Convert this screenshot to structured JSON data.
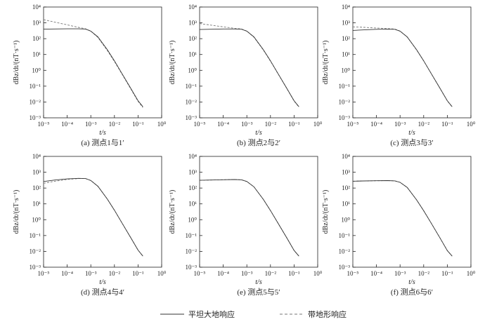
{
  "chart_data": [
    {
      "id": "a",
      "type": "line",
      "caption": "(a) 测点1与1′",
      "xlabel": "t/s",
      "ylabel": "dBz/dt/(nT·s⁻¹)",
      "xscale": "log",
      "yscale": "log",
      "xlim": [
        1e-05,
        1
      ],
      "ylim": [
        0.001,
        10000.0
      ],
      "xticks": [
        "10⁻⁵",
        "10⁻⁴",
        "10⁻³",
        "10⁻²",
        "10⁻¹",
        "10⁰"
      ],
      "yticks": [
        "10⁻³",
        "10⁻²",
        "10⁻¹",
        "10⁰",
        "10¹",
        "10²",
        "10³",
        "10⁴"
      ],
      "series": [
        {
          "name": "平坦大地响应",
          "style": "solid",
          "x": [
            1e-05,
            3e-05,
            0.0001,
            0.0003,
            0.0006,
            0.001,
            0.002,
            0.005,
            0.01,
            0.02,
            0.05,
            0.1,
            0.16
          ],
          "y": [
            400,
            410,
            420,
            420,
            405,
            300,
            130,
            20,
            4,
            0.7,
            0.07,
            0.012,
            0.005
          ]
        },
        {
          "name": "带地形响应",
          "style": "dashed",
          "x": [
            1e-05,
            3e-05,
            0.0001,
            0.0003,
            0.0006,
            0.001,
            0.002,
            0.005,
            0.01,
            0.02,
            0.05,
            0.1,
            0.16
          ],
          "y": [
            1600,
            1100,
            750,
            520,
            420,
            300,
            120,
            18,
            3.6,
            0.65,
            0.065,
            0.011,
            0.0045
          ]
        }
      ]
    },
    {
      "id": "b",
      "type": "line",
      "caption": "(b) 测点2与2′",
      "xlabel": "t/s",
      "ylabel": "dBz/dt/(nT·s⁻¹)",
      "xscale": "log",
      "yscale": "log",
      "xlim": [
        1e-05,
        1
      ],
      "ylim": [
        0.001,
        10000.0
      ],
      "xticks": [
        "10⁻⁵",
        "10⁻⁴",
        "10⁻³",
        "10⁻²",
        "10⁻¹",
        "10⁰"
      ],
      "yticks": [
        "10⁻³",
        "10⁻²",
        "10⁻¹",
        "10⁰",
        "10¹",
        "10²",
        "10³",
        "10⁴"
      ],
      "series": [
        {
          "name": "平坦大地响应",
          "style": "solid",
          "x": [
            1e-05,
            3e-05,
            0.0001,
            0.0003,
            0.0006,
            0.001,
            0.002,
            0.005,
            0.01,
            0.02,
            0.05,
            0.1,
            0.16
          ],
          "y": [
            380,
            395,
            410,
            410,
            395,
            300,
            130,
            20,
            4,
            0.7,
            0.07,
            0.012,
            0.005
          ]
        },
        {
          "name": "带地形响应",
          "style": "dashed",
          "x": [
            1e-05,
            3e-05,
            0.0001,
            0.0003,
            0.0006,
            0.001,
            0.002,
            0.005,
            0.01,
            0.02,
            0.05,
            0.1,
            0.16
          ],
          "y": [
            900,
            720,
            560,
            450,
            410,
            300,
            125,
            19,
            3.8,
            0.68,
            0.068,
            0.0115,
            0.0048
          ]
        }
      ]
    },
    {
      "id": "c",
      "type": "line",
      "caption": "(c) 测点3与3′",
      "xlabel": "t/s",
      "ylabel": "dBz/dt/(nT·s⁻¹)",
      "xscale": "log",
      "yscale": "log",
      "xlim": [
        1e-05,
        1
      ],
      "ylim": [
        0.001,
        10000.0
      ],
      "xticks": [
        "10⁻⁵",
        "10⁻⁴",
        "10⁻³",
        "10⁻²",
        "10⁻¹",
        "10⁰"
      ],
      "yticks": [
        "10⁻³",
        "10⁻²",
        "10⁻¹",
        "10⁰",
        "10¹",
        "10²",
        "10³",
        "10⁴"
      ],
      "series": [
        {
          "name": "平坦大地响应",
          "style": "solid",
          "x": [
            1e-05,
            3e-05,
            0.0001,
            0.0003,
            0.0006,
            0.001,
            0.002,
            0.005,
            0.01,
            0.02,
            0.05,
            0.1,
            0.16
          ],
          "y": [
            330,
            360,
            390,
            400,
            390,
            300,
            130,
            20,
            4,
            0.7,
            0.07,
            0.012,
            0.005
          ]
        },
        {
          "name": "带地形响应",
          "style": "dashed",
          "x": [
            1e-05,
            3e-05,
            0.0001,
            0.0003,
            0.0006,
            0.001,
            0.002,
            0.005,
            0.01,
            0.02,
            0.05,
            0.1,
            0.16
          ],
          "y": [
            560,
            520,
            470,
            430,
            405,
            300,
            128,
            19.5,
            3.9,
            0.69,
            0.069,
            0.0118,
            0.0049
          ]
        }
      ]
    },
    {
      "id": "d",
      "type": "line",
      "caption": "(d) 测点4与4′",
      "xlabel": "t/s",
      "ylabel": "dBz/dt/(nT·s⁻¹)",
      "xscale": "log",
      "yscale": "log",
      "xlim": [
        1e-05,
        1
      ],
      "ylim": [
        0.001,
        10000.0
      ],
      "xticks": [
        "10⁻⁵",
        "10⁻⁴",
        "10⁻³",
        "10⁻²",
        "10⁻¹",
        "10⁰"
      ],
      "yticks": [
        "10⁻³",
        "10⁻²",
        "10⁻¹",
        "10⁰",
        "10¹",
        "10²",
        "10³",
        "10⁴"
      ],
      "series": [
        {
          "name": "平坦大地响应",
          "style": "solid",
          "x": [
            1e-05,
            3e-05,
            0.0001,
            0.0003,
            0.0006,
            0.001,
            0.002,
            0.005,
            0.01,
            0.02,
            0.05,
            0.1,
            0.16
          ],
          "y": [
            260,
            320,
            380,
            410,
            400,
            300,
            130,
            20,
            4,
            0.7,
            0.07,
            0.012,
            0.005
          ]
        },
        {
          "name": "带地形响应",
          "style": "dashed",
          "x": [
            1e-05,
            3e-05,
            0.0001,
            0.0003,
            0.0006,
            0.001,
            0.002,
            0.005,
            0.01,
            0.02,
            0.05,
            0.1,
            0.16
          ],
          "y": [
            200,
            270,
            350,
            400,
            400,
            300,
            130,
            20,
            4,
            0.7,
            0.07,
            0.012,
            0.005
          ]
        }
      ]
    },
    {
      "id": "e",
      "type": "line",
      "caption": "(e) 测点5与5′",
      "xlabel": "t/s",
      "ylabel": "dBz/dt/(nT·s⁻¹)",
      "xscale": "log",
      "yscale": "log",
      "xlim": [
        1e-05,
        1
      ],
      "ylim": [
        0.001,
        10000.0
      ],
      "xticks": [
        "10⁻⁵",
        "10⁻⁴",
        "10⁻³",
        "10⁻²",
        "10⁻¹",
        "10⁰"
      ],
      "yticks": [
        "10⁻³",
        "10⁻²",
        "10⁻¹",
        "10⁰",
        "10¹",
        "10²",
        "10³",
        "10⁴"
      ],
      "series": [
        {
          "name": "平坦大地响应",
          "style": "solid",
          "x": [
            1e-05,
            3e-05,
            0.0001,
            0.0003,
            0.0006,
            0.001,
            0.002,
            0.005,
            0.01,
            0.02,
            0.05,
            0.1,
            0.16
          ],
          "y": [
            310,
            320,
            335,
            345,
            330,
            260,
            120,
            19,
            3.8,
            0.68,
            0.068,
            0.0115,
            0.005
          ]
        },
        {
          "name": "带地形响应",
          "style": "dashed",
          "x": [
            1e-05,
            3e-05,
            0.0001,
            0.0003,
            0.0006,
            0.001,
            0.002,
            0.005,
            0.01,
            0.02,
            0.05,
            0.1,
            0.16
          ],
          "y": [
            310,
            320,
            335,
            345,
            330,
            260,
            120,
            19,
            3.8,
            0.68,
            0.068,
            0.0115,
            0.005
          ]
        }
      ]
    },
    {
      "id": "f",
      "type": "line",
      "caption": "(f) 测点6与6′",
      "xlabel": "t/s",
      "ylabel": "dBz/dt/(nT·s⁻¹)",
      "xscale": "log",
      "yscale": "log",
      "xlim": [
        1e-05,
        1
      ],
      "ylim": [
        0.001,
        10000.0
      ],
      "xticks": [
        "10⁻⁵",
        "10⁻⁴",
        "10⁻³",
        "10⁻²",
        "10⁻¹",
        "10⁰"
      ],
      "yticks": [
        "10⁻³",
        "10⁻²",
        "10⁻¹",
        "10⁰",
        "10¹",
        "10²",
        "10³",
        "10⁴"
      ],
      "series": [
        {
          "name": "平坦大地响应",
          "style": "solid",
          "x": [
            1e-05,
            3e-05,
            0.0001,
            0.0003,
            0.0006,
            0.001,
            0.002,
            0.005,
            0.01,
            0.02,
            0.05,
            0.1,
            0.16
          ],
          "y": [
            270,
            280,
            290,
            295,
            285,
            230,
            110,
            18,
            3.7,
            0.67,
            0.067,
            0.0112,
            0.005
          ]
        },
        {
          "name": "带地形响应",
          "style": "dashed",
          "x": [
            1e-05,
            3e-05,
            0.0001,
            0.0003,
            0.0006,
            0.001,
            0.002,
            0.005,
            0.01,
            0.02,
            0.05,
            0.1,
            0.16
          ],
          "y": [
            270,
            280,
            290,
            295,
            285,
            230,
            110,
            18,
            3.7,
            0.67,
            0.067,
            0.0112,
            0.005
          ]
        }
      ]
    }
  ],
  "legend": {
    "items": [
      {
        "label": "平坦大地响应",
        "style": "solid"
      },
      {
        "label": "带地形响应",
        "style": "dashed"
      }
    ]
  },
  "colors": {
    "line": "#333333",
    "axis": "#222222",
    "dashed": "#777777"
  }
}
